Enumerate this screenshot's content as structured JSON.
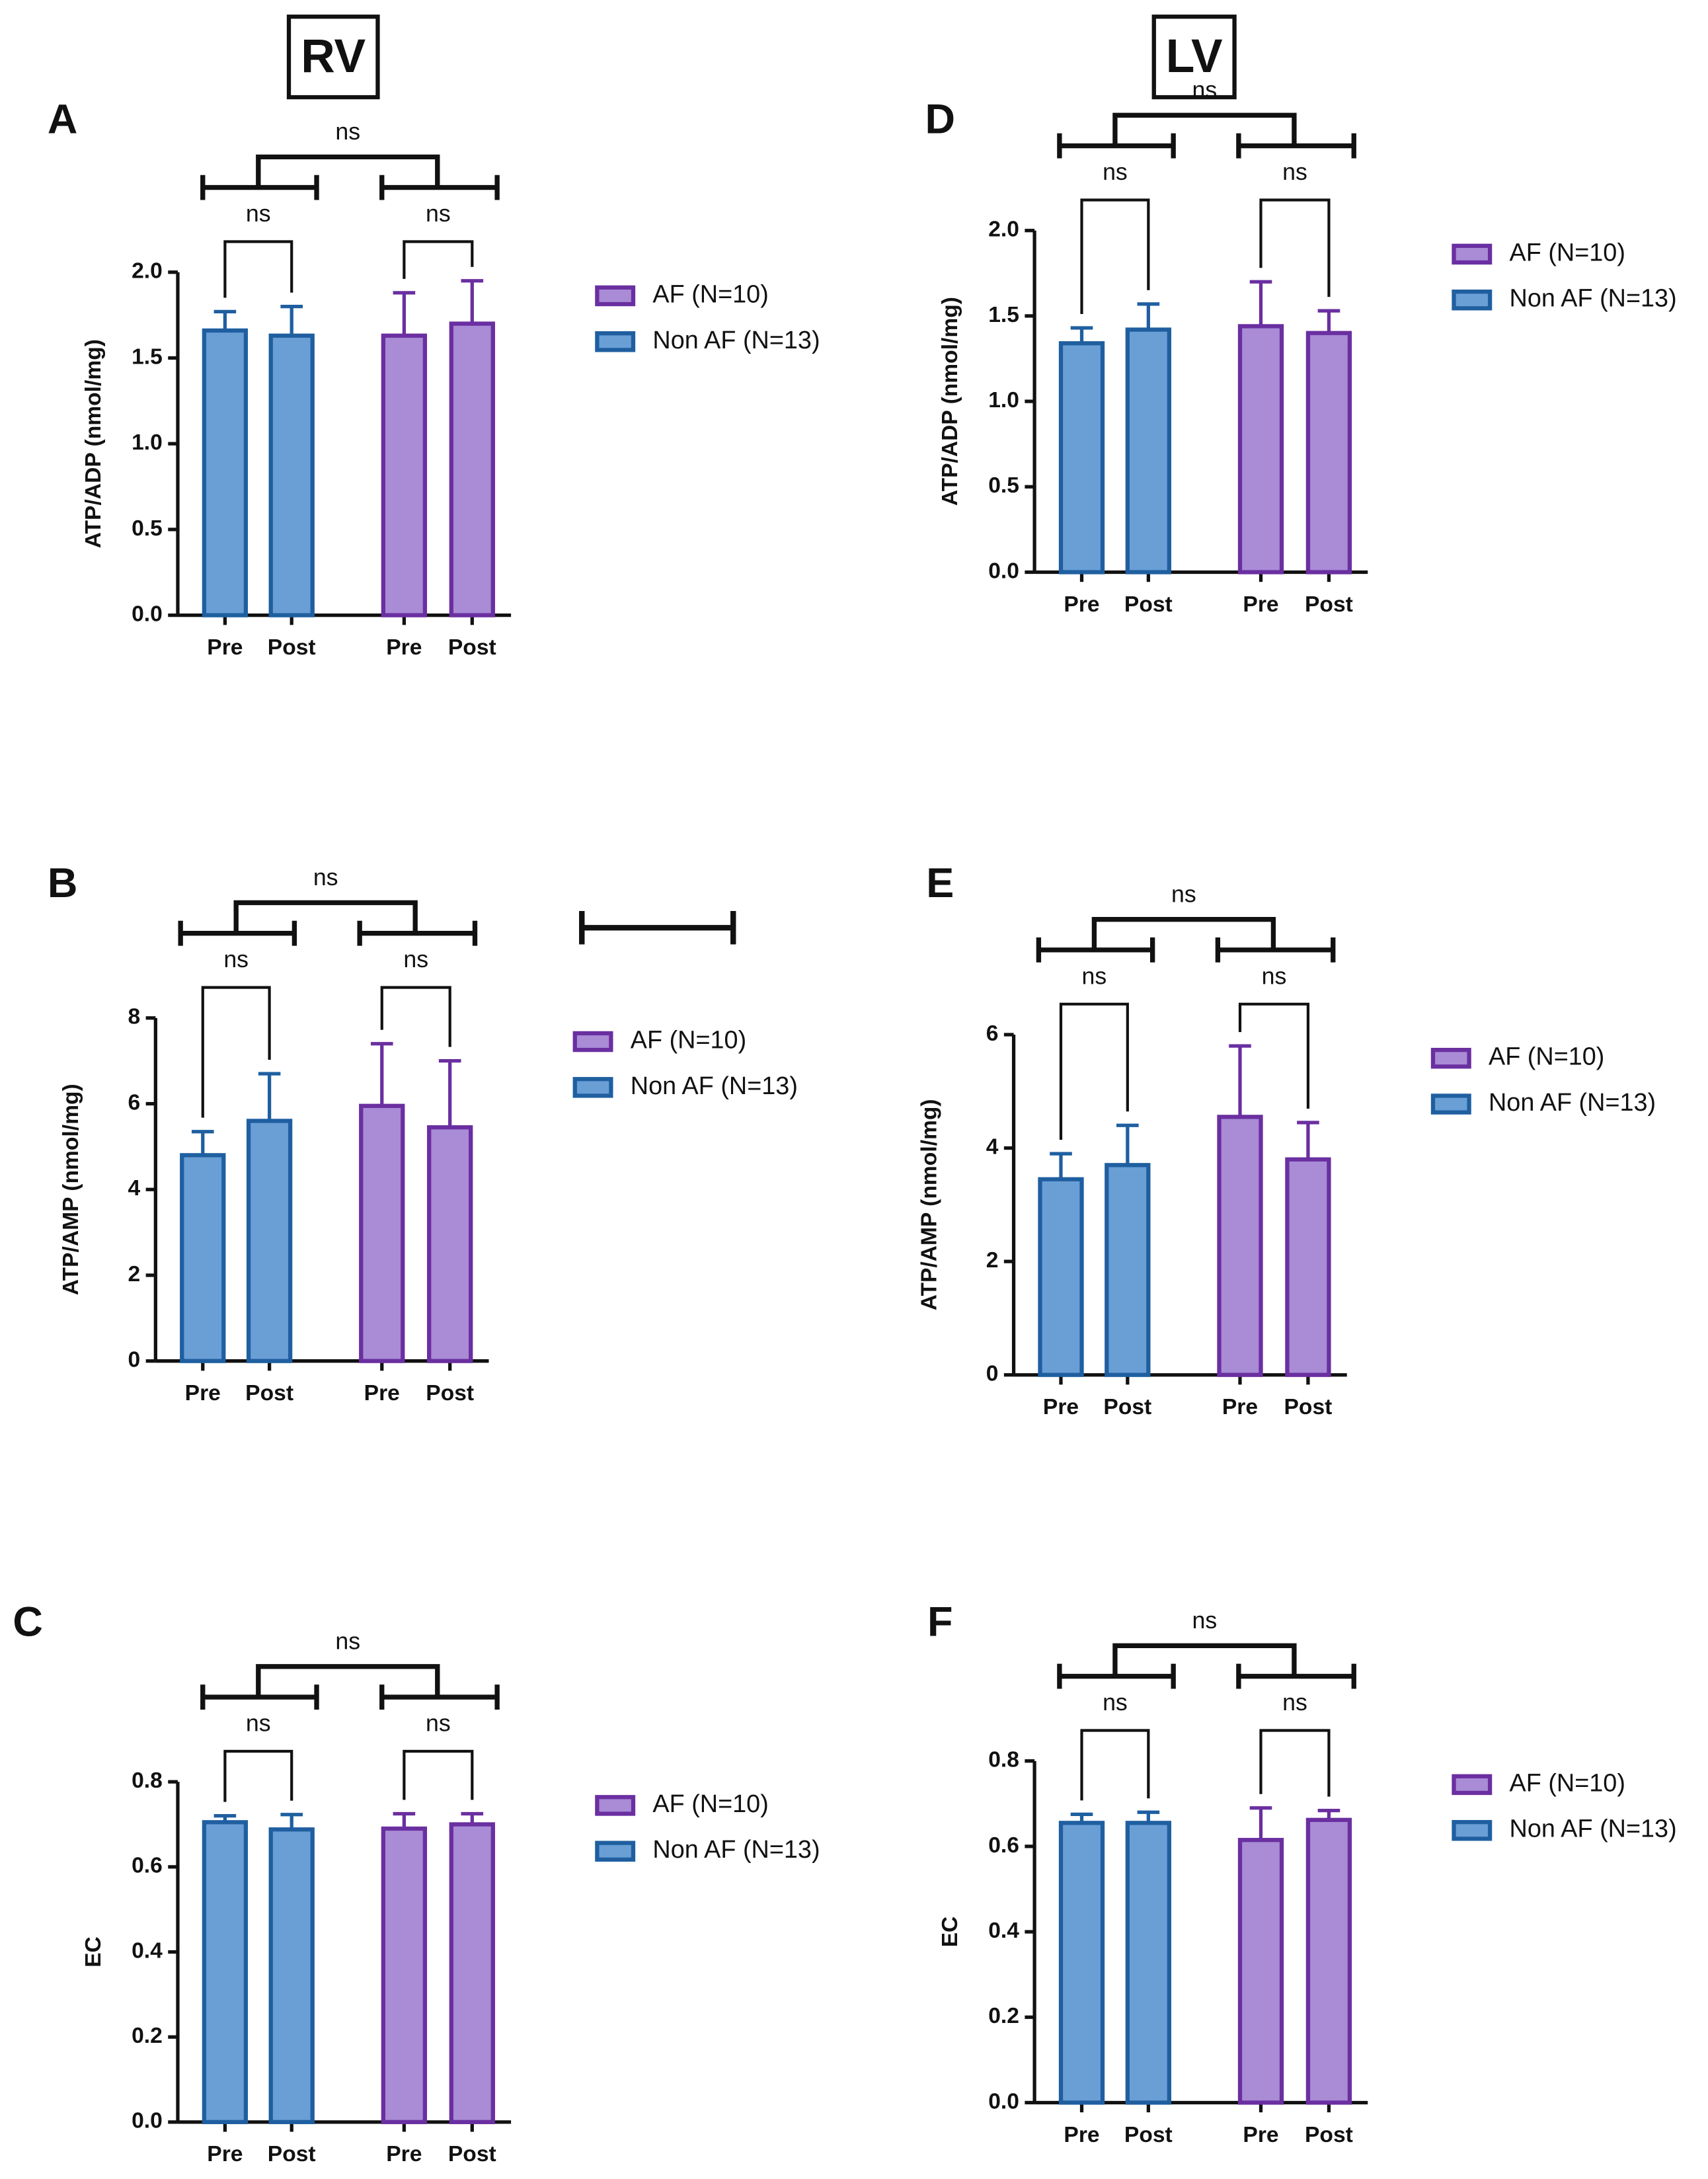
{
  "headers": [
    "RV",
    "LV"
  ],
  "chart_data": [
    {
      "type": "bar",
      "panel": "A",
      "ylabel": "ATP/ADP (nmol/mg)",
      "categories": [
        "Pre",
        "Post",
        "Pre",
        "Post"
      ],
      "annotations": [
        "ns",
        "ns",
        "ns"
      ],
      "ylim": [
        0,
        2
      ],
      "yticks": [
        {
          "value": 0,
          "label": "0.0"
        },
        {
          "value": 0.5,
          "label": "0.5"
        },
        {
          "value": 1,
          "label": "1.0"
        },
        {
          "value": 1.5,
          "label": "1.5"
        },
        {
          "value": 2,
          "label": "2.0"
        }
      ],
      "series": [
        {
          "name": "AF (N=10)",
          "color": "#a98bd6",
          "edgecolor": "#6a2fa0",
          "values": [
            null,
            null,
            1.63,
            1.7
          ],
          "errors": [
            null,
            null,
            0.25,
            0.25
          ]
        },
        {
          "name": "Non AF (N=13)",
          "color": "#6a9fd6",
          "edgecolor": "#1f5fa0",
          "values": [
            1.66,
            1.63,
            null,
            null
          ],
          "errors": [
            0.11,
            0.17,
            null,
            null
          ]
        }
      ]
    },
    {
      "type": "bar",
      "panel": "B",
      "ylabel": "ATP/AMP (nmol/mg)",
      "categories": [
        "Pre",
        "Post",
        "Pre",
        "Post"
      ],
      "annotations": [
        "ns",
        "ns",
        "ns"
      ],
      "ylim": [
        0,
        8
      ],
      "yticks": [
        0,
        2,
        4,
        6,
        8
      ],
      "series": [
        {
          "name": "AF (N=10)",
          "color": "#a98bd6",
          "edgecolor": "#6a2fa0",
          "values": [
            null,
            null,
            5.95,
            5.45
          ],
          "errors": [
            null,
            null,
            1.45,
            1.55
          ]
        },
        {
          "name": "Non AF (N=13)",
          "color": "#6a9fd6",
          "edgecolor": "#1f5fa0",
          "values": [
            4.8,
            5.6,
            null,
            null
          ],
          "errors": [
            0.55,
            1.1,
            null,
            null
          ]
        }
      ]
    },
    {
      "type": "bar",
      "panel": "C",
      "ylabel": "EC",
      "categories": [
        "Pre",
        "Post",
        "Pre",
        "Post"
      ],
      "annotations": [
        "ns",
        "ns",
        "ns"
      ],
      "ylim": [
        0,
        0.8
      ],
      "yticks": [
        {
          "value": 0,
          "label": "0.0"
        },
        0.2,
        0.4,
        0.6,
        0.8
      ],
      "series": [
        {
          "name": "AF (N=10)",
          "color": "#a98bd6",
          "edgecolor": "#6a2fa0",
          "values": [
            null,
            null,
            0.69,
            0.7
          ],
          "errors": [
            null,
            null,
            0.035,
            0.025
          ]
        },
        {
          "name": "Non AF (N=13)",
          "color": "#6a9fd6",
          "edgecolor": "#1f5fa0",
          "values": [
            0.705,
            0.688,
            null,
            null
          ],
          "errors": [
            0.015,
            0.035,
            null,
            null
          ]
        }
      ]
    },
    {
      "type": "bar",
      "panel": "D",
      "ylabel": "ATP/ADP (nmol/mg)",
      "categories": [
        "Pre",
        "Post",
        "Pre",
        "Post"
      ],
      "annotations": [
        "ns",
        "ns",
        "ns"
      ],
      "ylim": [
        0,
        2
      ],
      "yticks": [
        {
          "value": 0,
          "label": "0.0"
        },
        {
          "value": 0.5,
          "label": "0.5"
        },
        {
          "value": 1,
          "label": "1.0"
        },
        {
          "value": 1.5,
          "label": "1.5"
        },
        {
          "value": 2,
          "label": "2.0"
        }
      ],
      "series": [
        {
          "name": "AF (N=10)",
          "color": "#a98bd6",
          "edgecolor": "#6a2fa0",
          "values": [
            null,
            null,
            1.44,
            1.4
          ],
          "errors": [
            null,
            null,
            0.26,
            0.13
          ]
        },
        {
          "name": "Non AF (N=13)",
          "color": "#6a9fd6",
          "edgecolor": "#1f5fa0",
          "values": [
            1.34,
            1.42,
            null,
            null
          ],
          "errors": [
            0.09,
            0.15,
            null,
            null
          ]
        }
      ]
    },
    {
      "type": "bar",
      "panel": "E",
      "ylabel": "ATP/AMP (nmol/mg)",
      "categories": [
        "Pre",
        "Post",
        "Pre",
        "Post"
      ],
      "annotations": [
        "ns",
        "ns",
        "ns"
      ],
      "ylim": [
        0,
        6
      ],
      "yticks": [
        0,
        2,
        4,
        6
      ],
      "series": [
        {
          "name": "AF (N=10)",
          "color": "#a98bd6",
          "edgecolor": "#6a2fa0",
          "values": [
            null,
            null,
            4.55,
            3.8
          ],
          "errors": [
            null,
            null,
            1.25,
            0.65
          ]
        },
        {
          "name": "Non AF (N=13)",
          "color": "#6a9fd6",
          "edgecolor": "#1f5fa0",
          "values": [
            3.45,
            3.7,
            null,
            null
          ],
          "errors": [
            0.45,
            0.7,
            null,
            null
          ]
        }
      ]
    },
    {
      "type": "bar",
      "panel": "F",
      "ylabel": "EC",
      "categories": [
        "Pre",
        "Post",
        "Pre",
        "Post"
      ],
      "annotations": [
        "ns",
        "ns",
        "ns"
      ],
      "ylim": [
        0,
        0.8
      ],
      "yticks": [
        {
          "value": 0,
          "label": "0.0"
        },
        0.2,
        0.4,
        0.6,
        0.8
      ],
      "series": [
        {
          "name": "AF (N=10)",
          "color": "#a98bd6",
          "edgecolor": "#6a2fa0",
          "values": [
            null,
            null,
            0.615,
            0.662
          ],
          "errors": [
            null,
            null,
            0.075,
            0.022
          ]
        },
        {
          "name": "Non AF (N=13)",
          "color": "#6a9fd6",
          "edgecolor": "#1f5fa0",
          "values": [
            0.655,
            0.655,
            null,
            null
          ],
          "errors": [
            0.02,
            0.025,
            null,
            null
          ]
        }
      ]
    }
  ]
}
